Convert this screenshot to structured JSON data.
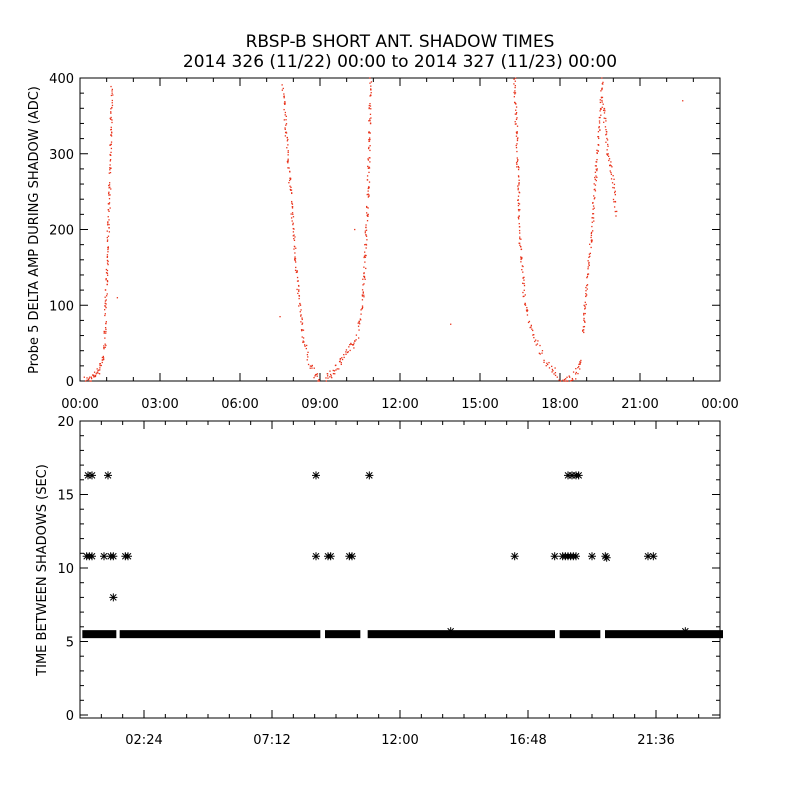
{
  "title_line1": "RBSP-B SHORT ANT. SHADOW TIMES",
  "title_line2": "2014 326 (11/22) 00:00 to 2014 327 (11/23) 00:00",
  "colors": {
    "shadow_points": "#e8321a",
    "interval_marks": "#000000",
    "axes": "#000000"
  },
  "chart_data": [
    {
      "type": "scatter",
      "ylabel": "Probe 5 DELTA AMP DURING SHADOW (ADC)",
      "xlim_hours": [
        0,
        24
      ],
      "ylim": [
        0,
        400
      ],
      "x_tick_labels": [
        "00:00",
        "03:00",
        "06:00",
        "09:00",
        "12:00",
        "15:00",
        "18:00",
        "21:00",
        "00:00"
      ],
      "y_tick_labels": [
        "0",
        "100",
        "200",
        "300",
        "400"
      ],
      "series": [
        {
          "note_x_units": "hours of day",
          "segments": [
            {
              "x": [
                0.2,
                0.4,
                0.55,
                0.7,
                0.8,
                0.9
              ],
              "y": [
                0,
                3,
                8,
                15,
                25,
                35
              ]
            },
            {
              "x": [
                0.92,
                0.98,
                1.02,
                1.06,
                1.1,
                1.15,
                1.2
              ],
              "y": [
                40,
                110,
                160,
                200,
                240,
                320,
                390
              ]
            },
            {
              "x": [
                7.6,
                7.8,
                8.0,
                8.2,
                8.4,
                8.6,
                8.8,
                9.0
              ],
              "y": [
                390,
                300,
                200,
                110,
                50,
                25,
                10,
                2
              ]
            },
            {
              "x": [
                9.2,
                9.4,
                9.6,
                9.8,
                10.0,
                10.2,
                10.35
              ],
              "y": [
                2,
                8,
                18,
                28,
                38,
                45,
                55
              ]
            },
            {
              "x": [
                10.4,
                10.6,
                10.8,
                10.9
              ],
              "y": [
                60,
                100,
                240,
                400
              ]
            },
            {
              "x": [
                16.3,
                16.4,
                16.5,
                16.7,
                16.9,
                17.1,
                17.4,
                17.7,
                17.9
              ],
              "y": [
                400,
                300,
                180,
                100,
                70,
                50,
                30,
                15,
                5
              ]
            },
            {
              "x": [
                18.0,
                18.3,
                18.5,
                18.7,
                18.8
              ],
              "y": [
                0,
                0,
                5,
                15,
                30
              ]
            },
            {
              "x": [
                18.85,
                19.0,
                19.2,
                19.4,
                19.6
              ],
              "y": [
                60,
                120,
                200,
                300,
                400
              ]
            },
            {
              "x": [
                19.6,
                19.8,
                20.0,
                20.1
              ],
              "y": [
                370,
                300,
                260,
                220
              ]
            }
          ],
          "isolated": {
            "x": [
              1.4,
              10.3,
              13.9,
              22.6,
              7.5
            ],
            "y": [
              110,
              200,
              75,
              370,
              85
            ]
          }
        }
      ]
    },
    {
      "type": "scatter",
      "ylabel": "TIME BETWEEN SHADOWS (SEC)",
      "xlim_hours": [
        0,
        24
      ],
      "ylim": [
        0,
        20
      ],
      "x_tick_hours": [
        2.4,
        7.2,
        12.0,
        16.8,
        21.6
      ],
      "x_tick_labels": [
        "02:24",
        "07:12",
        "12:00",
        "16:48",
        "21:36"
      ],
      "y_tick_labels": [
        "0",
        "5",
        "10",
        "15",
        "20"
      ],
      "baseline": {
        "y": 5.5,
        "ranges_hours": [
          [
            0.2,
            1.25
          ],
          [
            1.6,
            8.9
          ],
          [
            9.3,
            10.4
          ],
          [
            10.9,
            17.7
          ],
          [
            18.1,
            19.4
          ],
          [
            19.8,
            24.0
          ]
        ]
      },
      "points": [
        {
          "x": 0.25,
          "y": 10.8
        },
        {
          "x": 0.35,
          "y": 10.8
        },
        {
          "x": 0.45,
          "y": 10.8
        },
        {
          "x": 0.3,
          "y": 16.3
        },
        {
          "x": 0.45,
          "y": 16.3
        },
        {
          "x": 0.9,
          "y": 10.8
        },
        {
          "x": 1.05,
          "y": 16.3
        },
        {
          "x": 1.15,
          "y": 10.8
        },
        {
          "x": 1.25,
          "y": 10.8
        },
        {
          "x": 1.25,
          "y": 8.0
        },
        {
          "x": 1.7,
          "y": 10.8
        },
        {
          "x": 1.8,
          "y": 10.8
        },
        {
          "x": 8.85,
          "y": 10.8
        },
        {
          "x": 8.85,
          "y": 16.3
        },
        {
          "x": 9.3,
          "y": 10.8
        },
        {
          "x": 9.4,
          "y": 10.8
        },
        {
          "x": 10.1,
          "y": 10.8
        },
        {
          "x": 10.2,
          "y": 10.8
        },
        {
          "x": 10.85,
          "y": 16.3
        },
        {
          "x": 16.3,
          "y": 10.8
        },
        {
          "x": 17.8,
          "y": 10.8
        },
        {
          "x": 18.1,
          "y": 10.8
        },
        {
          "x": 18.2,
          "y": 10.8
        },
        {
          "x": 18.3,
          "y": 10.8
        },
        {
          "x": 18.4,
          "y": 10.8
        },
        {
          "x": 18.5,
          "y": 10.8
        },
        {
          "x": 18.6,
          "y": 10.8
        },
        {
          "x": 18.3,
          "y": 16.3
        },
        {
          "x": 18.45,
          "y": 16.3
        },
        {
          "x": 18.6,
          "y": 16.3
        },
        {
          "x": 18.7,
          "y": 16.3
        },
        {
          "x": 19.2,
          "y": 10.8
        },
        {
          "x": 19.7,
          "y": 10.8
        },
        {
          "x": 19.75,
          "y": 10.7
        },
        {
          "x": 21.3,
          "y": 10.8
        },
        {
          "x": 21.5,
          "y": 10.8
        },
        {
          "x": 13.9,
          "y": 5.7
        },
        {
          "x": 22.7,
          "y": 5.7
        }
      ]
    }
  ]
}
